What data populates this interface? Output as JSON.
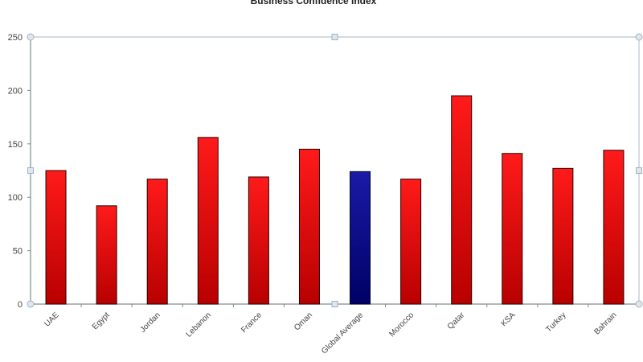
{
  "chart_data": {
    "type": "bar",
    "title": "Business Confidence Index",
    "categories": [
      "UAE",
      "Egypt",
      "Jordan",
      "Lebanon",
      "France",
      "Oman",
      "Global Average",
      "Morocco",
      "Qatar",
      "KSA",
      "Turkey",
      "Bahrain"
    ],
    "values": [
      125,
      92,
      117,
      156,
      119,
      145,
      124,
      117,
      195,
      141,
      127,
      144
    ],
    "highlight_index": 6,
    "ylim": [
      0,
      250
    ],
    "yticks": [
      "0",
      "50",
      "100",
      "150",
      "200",
      "250"
    ],
    "grid": false,
    "legend": "none",
    "colors": {
      "bar_top": "#ff1a1a",
      "bar_bottom": "#b80000",
      "highlight_top": "#1a1aa6",
      "highlight_bottom": "#000066",
      "axis": "#7f8c94",
      "frame": "#b9c6cf"
    }
  }
}
